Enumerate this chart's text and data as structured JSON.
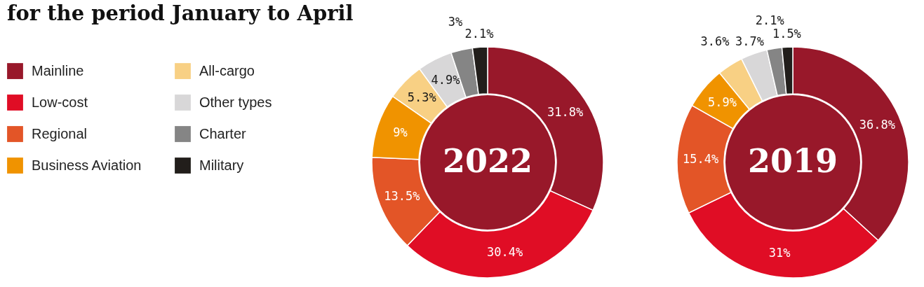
{
  "chart_data": {
    "type": "donut",
    "title": "for the period January to April",
    "categories": [
      "Mainline",
      "Low-cost",
      "Regional",
      "Business Aviation",
      "All-cargo",
      "Other types",
      "Charter",
      "Military"
    ],
    "colors": [
      "#98182a",
      "#e00d25",
      "#e35527",
      "#f09300",
      "#f8d084",
      "#d8d7d8",
      "#858585",
      "#221e1b"
    ],
    "legend": "left",
    "series": [
      {
        "name": "2022",
        "values": [
          31.8,
          30.4,
          13.5,
          9,
          5.3,
          4.9,
          3,
          2.1
        ],
        "value_labels": [
          "31.8%",
          "30.4%",
          "13.5%",
          "9%",
          "5.3%",
          "4.9%",
          "3%",
          "2.1%"
        ]
      },
      {
        "name": "2019",
        "values": [
          36.8,
          31,
          15.4,
          5.9,
          3.6,
          3.7,
          2.1,
          1.5
        ],
        "value_labels": [
          "36.8%",
          "31%",
          "15.4%",
          "5.9%",
          "3.6%",
          "3.7%",
          "2.1%",
          "1.5%"
        ]
      }
    ]
  }
}
